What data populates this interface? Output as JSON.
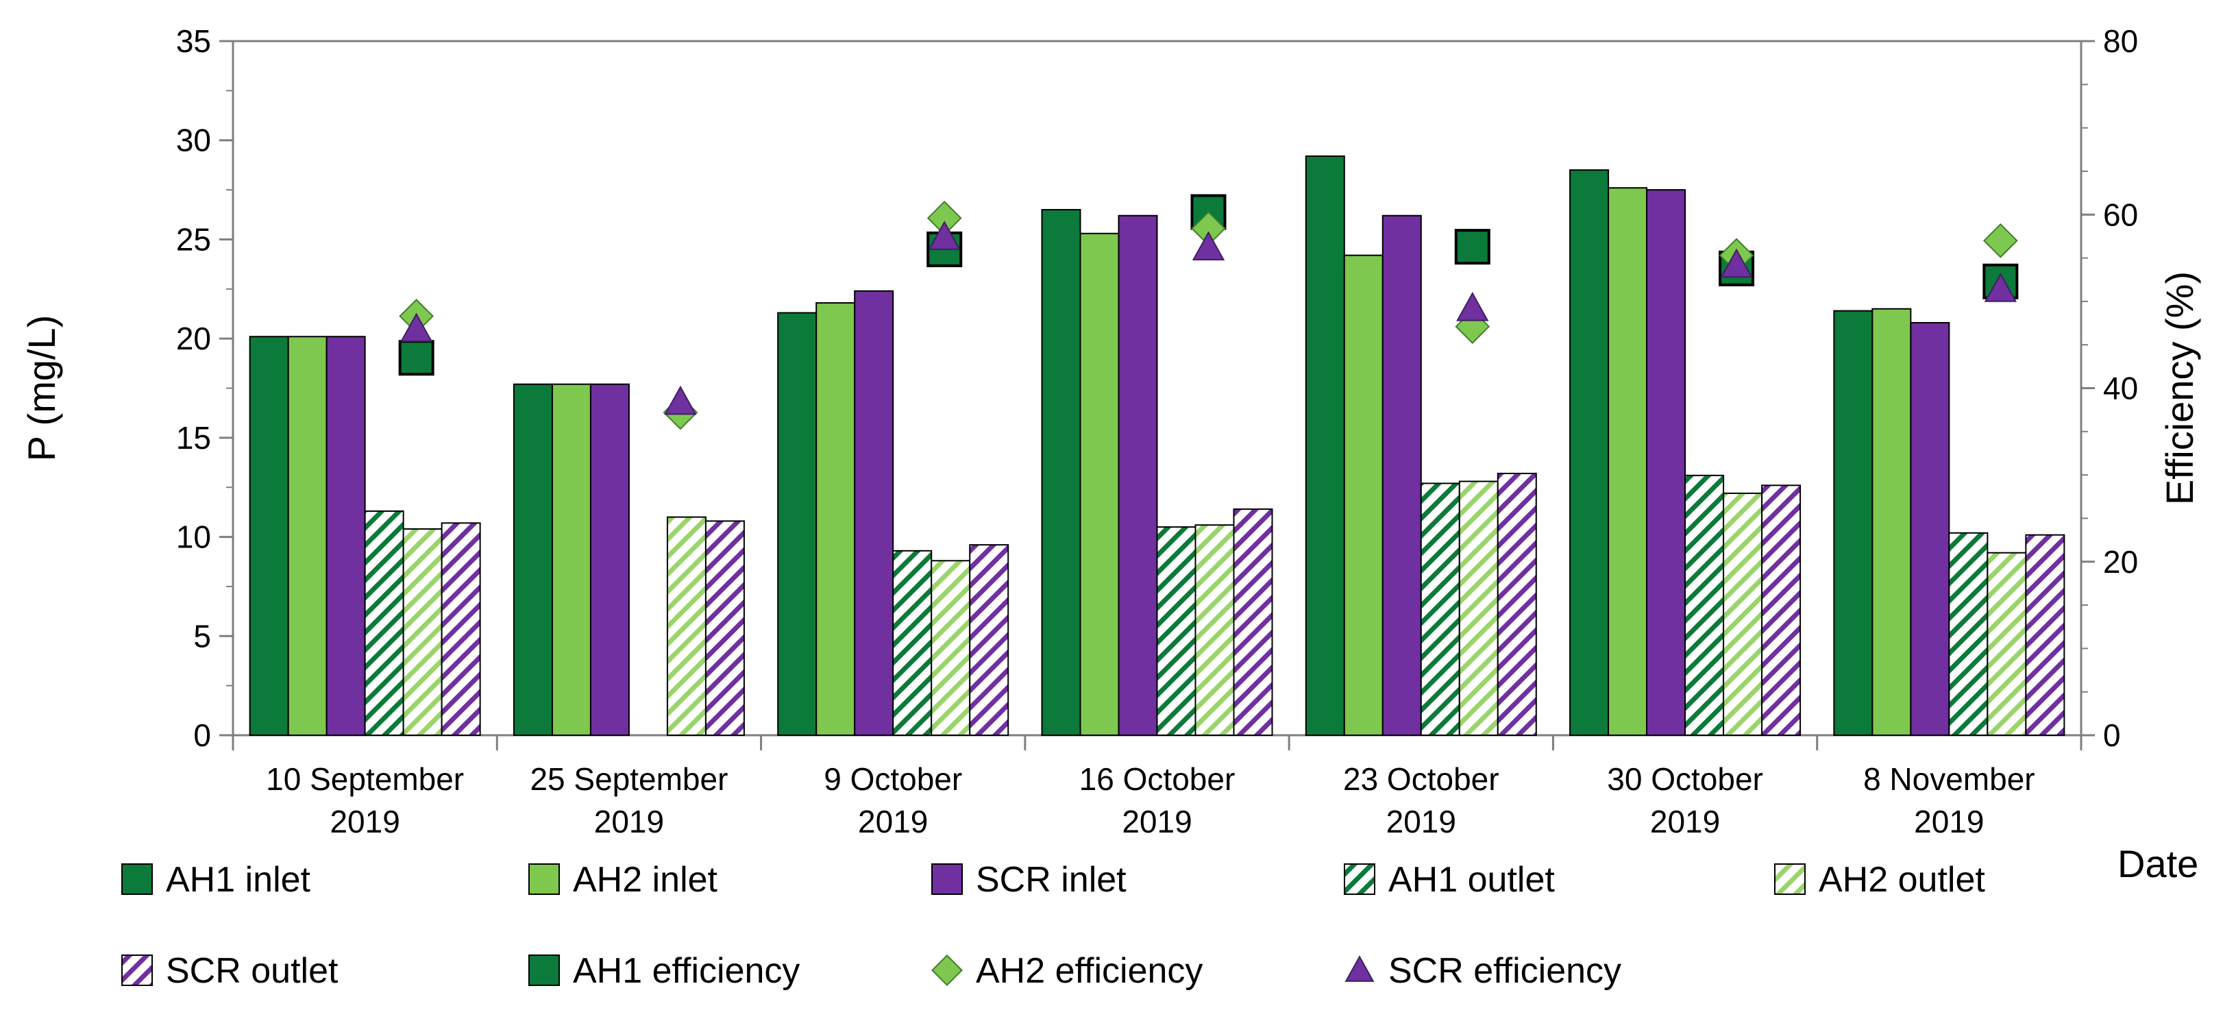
{
  "chart_data": {
    "type": "bar",
    "title": "",
    "xlabel": "Date",
    "ylabel": "P (mg/L)",
    "ylabel_right": "Efficiency (%)",
    "ylim": [
      0,
      35
    ],
    "ylim_right": [
      0,
      80
    ],
    "yticks": [
      "0",
      "5",
      "10",
      "15",
      "20",
      "25",
      "30",
      "35"
    ],
    "yticks_right": [
      "0",
      "20",
      "40",
      "60",
      "80"
    ],
    "categories": [
      [
        "10 September",
        "2019"
      ],
      [
        "25 September",
        "2019"
      ],
      [
        "9 October",
        "2019"
      ],
      [
        "16 October",
        "2019"
      ],
      [
        "23 October",
        "2019"
      ],
      [
        "30 October",
        "2019"
      ],
      [
        "8 November",
        "2019"
      ]
    ],
    "bar_series": [
      {
        "name": "AH1 inlet",
        "values": [
          20.1,
          17.7,
          21.3,
          26.5,
          29.2,
          28.5,
          21.4
        ],
        "color": "#0b7a3a",
        "pattern": "solid"
      },
      {
        "name": "AH2 inlet",
        "values": [
          20.1,
          17.7,
          21.8,
          25.3,
          24.2,
          27.6,
          21.5
        ],
        "color": "#7ec850",
        "pattern": "solid"
      },
      {
        "name": "SCR inlet",
        "values": [
          20.1,
          17.7,
          22.4,
          26.2,
          26.2,
          27.5,
          20.8
        ],
        "color": "#7030a0",
        "pattern": "solid"
      },
      {
        "name": "AH1 outlet",
        "values": [
          11.3,
          null,
          9.3,
          10.5,
          12.7,
          13.1,
          10.2
        ],
        "color": "#0b7a3a",
        "pattern": "hatch"
      },
      {
        "name": "AH2 outlet",
        "values": [
          10.4,
          11.0,
          8.8,
          10.6,
          12.8,
          12.2,
          9.2
        ],
        "color": "#9ad46b",
        "pattern": "hatch"
      },
      {
        "name": "SCR outlet",
        "values": [
          10.7,
          10.8,
          9.6,
          11.4,
          13.2,
          12.6,
          10.1
        ],
        "color": "#7030a0",
        "pattern": "hatch"
      }
    ],
    "marker_series": [
      {
        "name": "AH1 efficiency",
        "values": [
          43.5,
          null,
          56.0,
          60.3,
          56.3,
          53.8,
          52.3
        ],
        "color": "#0b7a3a",
        "marker": "square",
        "axis": "right"
      },
      {
        "name": "AH2 efficiency",
        "values": [
          48.3,
          37.2,
          59.6,
          58.4,
          47.1,
          55.3,
          57.0
        ],
        "color": "#7ec850",
        "marker": "diamond",
        "axis": "right"
      },
      {
        "name": "SCR efficiency",
        "values": [
          46.8,
          38.4,
          57.4,
          56.2,
          49.2,
          54.2,
          51.4
        ],
        "color": "#7030a0",
        "marker": "triangle",
        "axis": "right"
      }
    ],
    "legend_position": "bottom",
    "grid": false
  }
}
